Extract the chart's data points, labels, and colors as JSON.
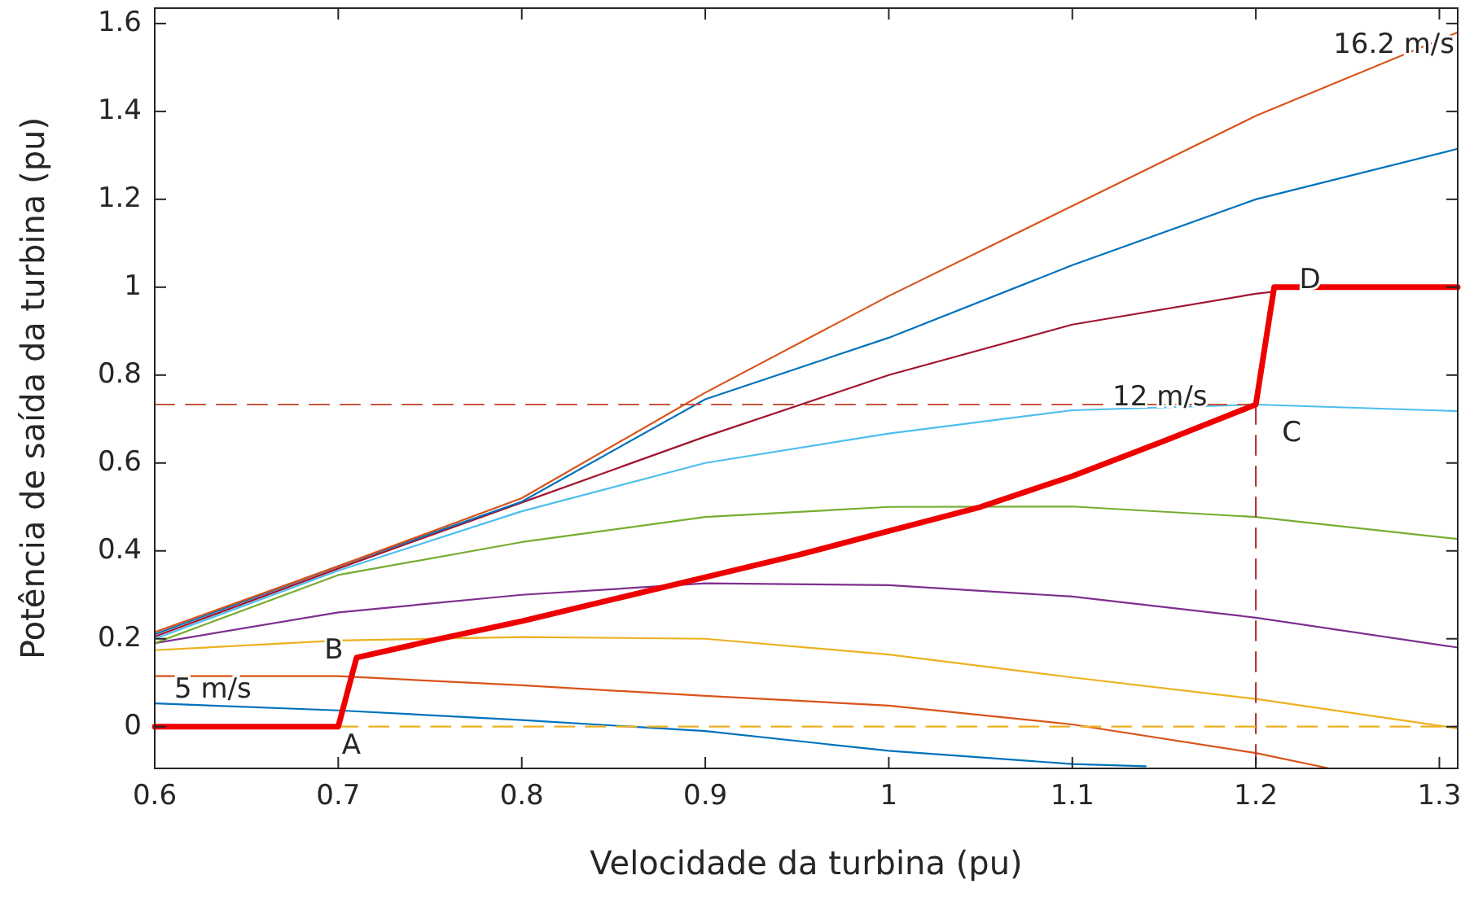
{
  "chart_data": {
    "type": "line",
    "xlabel": "Velocidade da turbina (pu)",
    "ylabel": "Potência de saída da turbina (pu)",
    "xlim": [
      0.6,
      1.31
    ],
    "ylim": [
      -0.095,
      1.635
    ],
    "xticks": [
      0.6,
      0.7,
      0.8,
      0.9,
      1,
      1.1,
      1.2,
      1.3
    ],
    "yticks": [
      0,
      0.2,
      0.4,
      0.6,
      0.8,
      1,
      1.2,
      1.4,
      1.6
    ],
    "grid": false,
    "marker": "none",
    "line_style": "solid",
    "series": [
      {
        "color": "#0072bd",
        "x": [
          0.6,
          0.7,
          0.8,
          0.9,
          1.0,
          1.1,
          1.14
        ],
        "values": [
          0.053,
          0.037,
          0.015,
          -0.01,
          -0.055,
          -0.085,
          -0.09
        ]
      },
      {
        "color": "#d95319",
        "x": [
          0.6,
          0.7,
          0.8,
          0.9,
          1.0,
          1.1,
          1.2,
          1.24
        ],
        "values": [
          0.115,
          0.115,
          0.094,
          0.07,
          0.048,
          0.005,
          -0.06,
          -0.095
        ]
      },
      {
        "color": "#edb120",
        "x": [
          0.6,
          0.7,
          0.8,
          0.9,
          1.0,
          1.1,
          1.2,
          1.31
        ],
        "values": [
          0.174,
          0.196,
          0.204,
          0.2,
          0.164,
          0.112,
          0.063,
          -0.004
        ]
      },
      {
        "color": "#7e2f8e",
        "x": [
          0.6,
          0.7,
          0.8,
          0.9,
          1.0,
          1.1,
          1.2,
          1.31
        ],
        "values": [
          0.19,
          0.26,
          0.3,
          0.326,
          0.322,
          0.296,
          0.248,
          0.18
        ]
      },
      {
        "color": "#77ac30",
        "x": [
          0.6,
          0.7,
          0.8,
          0.9,
          1.0,
          1.1,
          1.2,
          1.31
        ],
        "values": [
          0.19,
          0.345,
          0.42,
          0.477,
          0.5,
          0.501,
          0.477,
          0.427
        ]
      },
      {
        "color": "#4dbeee",
        "x": [
          0.6,
          0.7,
          0.8,
          0.9,
          1.0,
          1.1,
          1.2,
          1.31
        ],
        "values": [
          0.2,
          0.355,
          0.49,
          0.6,
          0.667,
          0.72,
          0.733,
          0.718
        ]
      },
      {
        "color": "#a2142f",
        "x": [
          0.6,
          0.7,
          0.8,
          0.9,
          1.0,
          1.1,
          1.2,
          1.21
        ],
        "values": [
          0.205,
          0.36,
          0.51,
          0.66,
          0.8,
          0.915,
          0.985,
          0.99
        ]
      },
      {
        "color": "#0072bd",
        "x": [
          0.6,
          0.7,
          0.8,
          0.9,
          1.0,
          1.1,
          1.2,
          1.31
        ],
        "values": [
          0.21,
          0.365,
          0.512,
          0.745,
          0.885,
          1.05,
          1.2,
          1.315
        ]
      },
      {
        "color": "#d95319",
        "x": [
          0.6,
          0.7,
          0.8,
          0.9,
          1.0,
          1.1,
          1.2,
          1.31
        ],
        "values": [
          0.215,
          0.365,
          0.52,
          0.76,
          0.98,
          1.185,
          1.39,
          1.58
        ]
      },
      {
        "color": "#c8553d",
        "line_style": "dashed",
        "x": [
          0.6,
          1.2
        ],
        "values": [
          0.733,
          0.733
        ]
      },
      {
        "color": "#b03a3a",
        "line_style": "dashed",
        "x": [
          1.2,
          1.2
        ],
        "values": [
          0.733,
          -0.095
        ]
      },
      {
        "color": "#edb120",
        "line_style": "dashed",
        "x": [
          0.7,
          1.31
        ],
        "values": [
          0,
          0
        ]
      },
      {
        "color": "#ee0000",
        "x": [
          0.6,
          0.7,
          0.71,
          0.75,
          0.8,
          0.85,
          0.9,
          0.95,
          1.0,
          1.05,
          1.1,
          1.15,
          1.2,
          1.21,
          1.31
        ],
        "values": [
          0,
          0,
          0.157,
          0.195,
          0.24,
          0.29,
          0.34,
          0.39,
          0.445,
          0.5,
          0.57,
          0.65,
          0.733,
          1.0,
          1.0
        ]
      }
    ],
    "annotations": [
      {
        "text": "16.2 m/s",
        "x": 1.31,
        "y": 1.58
      },
      {
        "text": "12 m/s",
        "x": 1.2,
        "y": 0.733
      },
      {
        "text": "5 m/s",
        "x": 0.6,
        "y": 0.053
      },
      {
        "text": "A",
        "x": 0.7,
        "y": 0
      },
      {
        "text": "B",
        "x": 0.71,
        "y": 0.157
      },
      {
        "text": "C",
        "x": 1.2,
        "y": 0.733
      },
      {
        "text": "D",
        "x": 1.21,
        "y": 1.0
      }
    ]
  }
}
